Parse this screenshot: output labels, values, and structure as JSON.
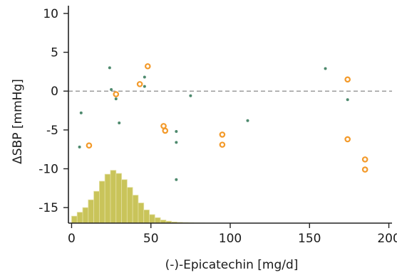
{
  "chart_data": {
    "type": "scatter",
    "xlabel": "(-)-Epicatechin [mg/d]",
    "ylabel": "ΔSBP [mmHg]",
    "xlim": [
      -2,
      202
    ],
    "ylim": [
      -17,
      11
    ],
    "x_ticks": [
      0,
      50,
      100,
      150,
      200
    ],
    "y_ticks": [
      -15,
      -10,
      -5,
      0,
      5,
      10
    ],
    "grid": false,
    "reference_line": {
      "y": 0,
      "style": "dashed",
      "color": "#8a8a8a"
    },
    "series": [
      {
        "marker": "small-dot",
        "color": "#4e8a6e",
        "points": [
          [
            5,
            -7.2
          ],
          [
            6,
            -2.8
          ],
          [
            24,
            3.0
          ],
          [
            25,
            0.2
          ],
          [
            28,
            -1.0
          ],
          [
            30,
            -4.1
          ],
          [
            46,
            1.8
          ],
          [
            46,
            0.6
          ],
          [
            66,
            -5.2
          ],
          [
            66,
            -6.6
          ],
          [
            66,
            -11.4
          ],
          [
            75,
            -0.6
          ],
          [
            111,
            -3.8
          ],
          [
            160,
            2.9
          ],
          [
            174,
            -1.1
          ]
        ]
      },
      {
        "marker": "open-circle",
        "color": "#f39a2a",
        "points": [
          [
            11,
            -7.0
          ],
          [
            28,
            -0.4
          ],
          [
            43,
            0.9
          ],
          [
            48,
            3.2
          ],
          [
            58,
            -4.5
          ],
          [
            59,
            -5.1
          ],
          [
            95,
            -5.6
          ],
          [
            95,
            -6.9
          ],
          [
            174,
            1.5
          ],
          [
            174,
            -6.2
          ],
          [
            185,
            -8.8
          ],
          [
            185,
            -10.1
          ]
        ]
      }
    ],
    "histogram": {
      "color": "#c9c45a",
      "edge_color": "#e3dfa0",
      "baseline": -17,
      "bin_width": 3.5,
      "bin_start": 0,
      "tops": [
        -16.1,
        -15.6,
        -15.0,
        -14.0,
        -12.9,
        -11.6,
        -10.7,
        -10.2,
        -10.6,
        -11.4,
        -12.4,
        -13.4,
        -14.4,
        -15.3,
        -15.9,
        -16.3,
        -16.6,
        -16.75,
        -16.85,
        -16.9,
        -16.93,
        -16.95,
        -16.97,
        -16.98,
        -16.99
      ]
    }
  }
}
